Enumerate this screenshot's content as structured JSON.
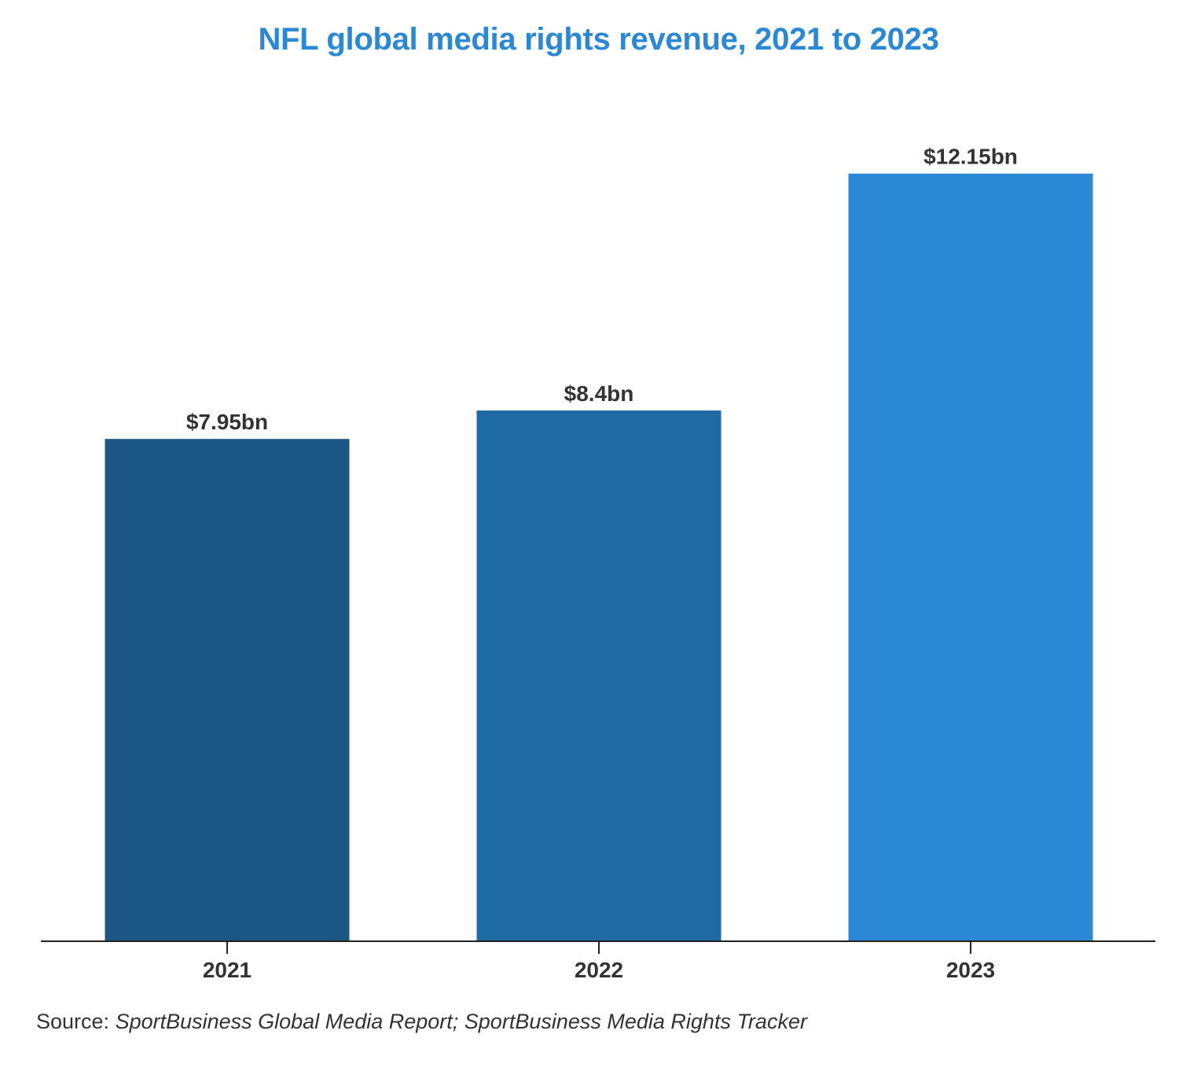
{
  "chart_data": {
    "type": "bar",
    "title": "NFL global media rights revenue, 2021 to 2023",
    "categories": [
      "2021",
      "2022",
      "2023"
    ],
    "values": [
      7.95,
      8.4,
      12.15
    ],
    "value_labels": [
      "$7.95bn",
      "$8.4bn",
      "$12.15bn"
    ],
    "bar_colors": [
      "#1b5685",
      "#206aa3",
      "#2a88d4"
    ],
    "xlabel": "",
    "ylabel": "",
    "ylim": [
      0,
      13
    ],
    "grid": false,
    "legend": "none"
  },
  "source": {
    "prefix": "Source: ",
    "text": "SportBusiness Global Media Report; SportBusiness Media Rights Tracker"
  },
  "colors": {
    "title": "#2a88d4",
    "label_text": "#333333",
    "axis": "#222222"
  }
}
